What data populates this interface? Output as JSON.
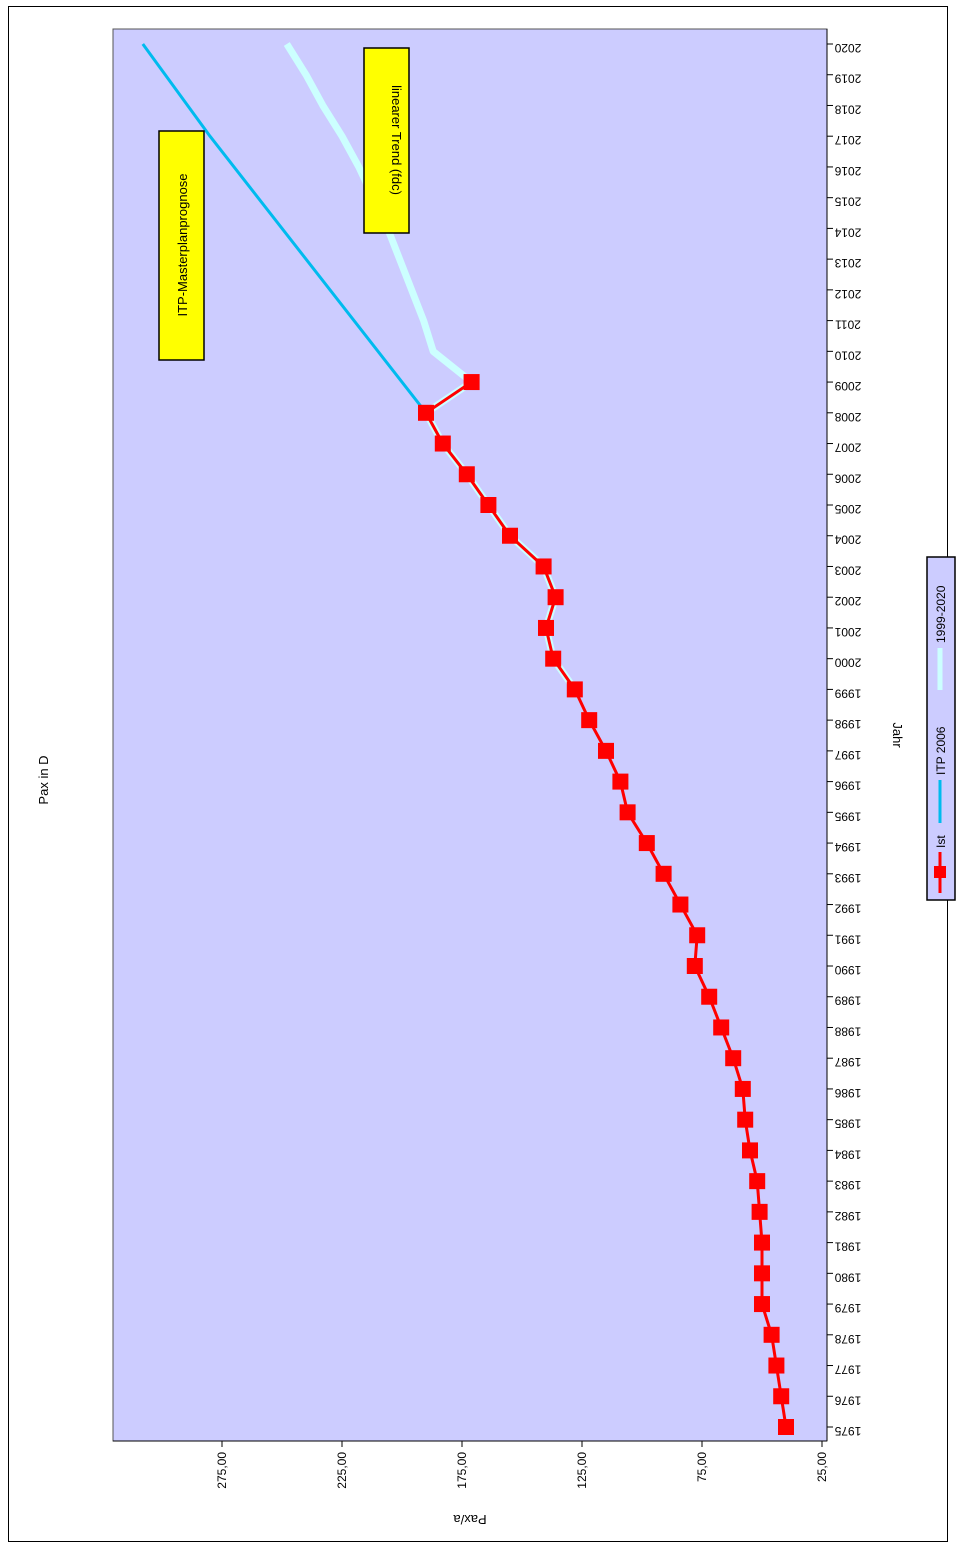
{
  "chart_data": {
    "type": "line",
    "title": "Pax  in D",
    "xlabel": "Jahr",
    "ylabel": "Pax/a",
    "ylim": [
      25,
      325
    ],
    "yticks": [
      "25,00",
      "75,00",
      "125,00",
      "175,00",
      "225,00",
      "275,00"
    ],
    "ytick_values": [
      25,
      75,
      125,
      175,
      225,
      275
    ],
    "x": [
      1975,
      1976,
      1977,
      1978,
      1979,
      1980,
      1981,
      1982,
      1983,
      1984,
      1985,
      1986,
      1987,
      1988,
      1989,
      1990,
      1991,
      1992,
      1993,
      1994,
      1995,
      1996,
      1997,
      1998,
      1999,
      2000,
      2001,
      2002,
      2003,
      2004,
      2005,
      2006,
      2007,
      2008,
      2009,
      2010,
      2011,
      2012,
      2013,
      2014,
      2015,
      2016,
      2017,
      2018,
      2019,
      2020
    ],
    "grid": false,
    "legend_position": "bottom",
    "background": "#ccccff",
    "series": [
      {
        "name": "Ist",
        "color": "#ff0000",
        "marker": "square",
        "x": [
          1975,
          1976,
          1977,
          1978,
          1979,
          1980,
          1981,
          1982,
          1983,
          1984,
          1985,
          1986,
          1987,
          1988,
          1989,
          1990,
          1991,
          1992,
          1993,
          1994,
          1995,
          1996,
          1997,
          1998,
          1999,
          2000,
          2001,
          2002,
          2003,
          2004,
          2005,
          2006,
          2007,
          2008,
          2009
        ],
        "values": [
          40,
          42,
          44,
          46,
          50,
          50,
          50,
          51,
          52,
          55,
          57,
          58,
          62,
          67,
          72,
          78,
          77,
          84,
          91,
          98,
          106,
          109,
          115,
          122,
          128,
          137,
          140,
          136,
          141,
          155,
          164,
          173,
          183,
          190,
          171
        ]
      },
      {
        "name": "ITP 2006",
        "color": "#00bbee",
        "x": [
          2008,
          2017,
          2020
        ],
        "values": [
          190,
          280,
          308
        ]
      },
      {
        "name": "1999-2020",
        "color": "#ccffff",
        "x": [
          1999,
          2000,
          2001,
          2002,
          2003,
          2004,
          2005,
          2006,
          2007,
          2008,
          2009,
          2010,
          2011,
          2012,
          2013,
          2014,
          2015,
          2016,
          2017,
          2018,
          2019,
          2020
        ],
        "values": [
          128,
          137,
          140,
          136,
          141,
          155,
          164,
          173,
          183,
          190,
          171,
          187,
          191,
          196,
          201,
          206,
          212,
          218,
          225,
          233,
          240,
          248
        ]
      }
    ],
    "annotations": [
      "ITP-Masterplanprognose",
      "linearer Trend (fdc)"
    ]
  }
}
